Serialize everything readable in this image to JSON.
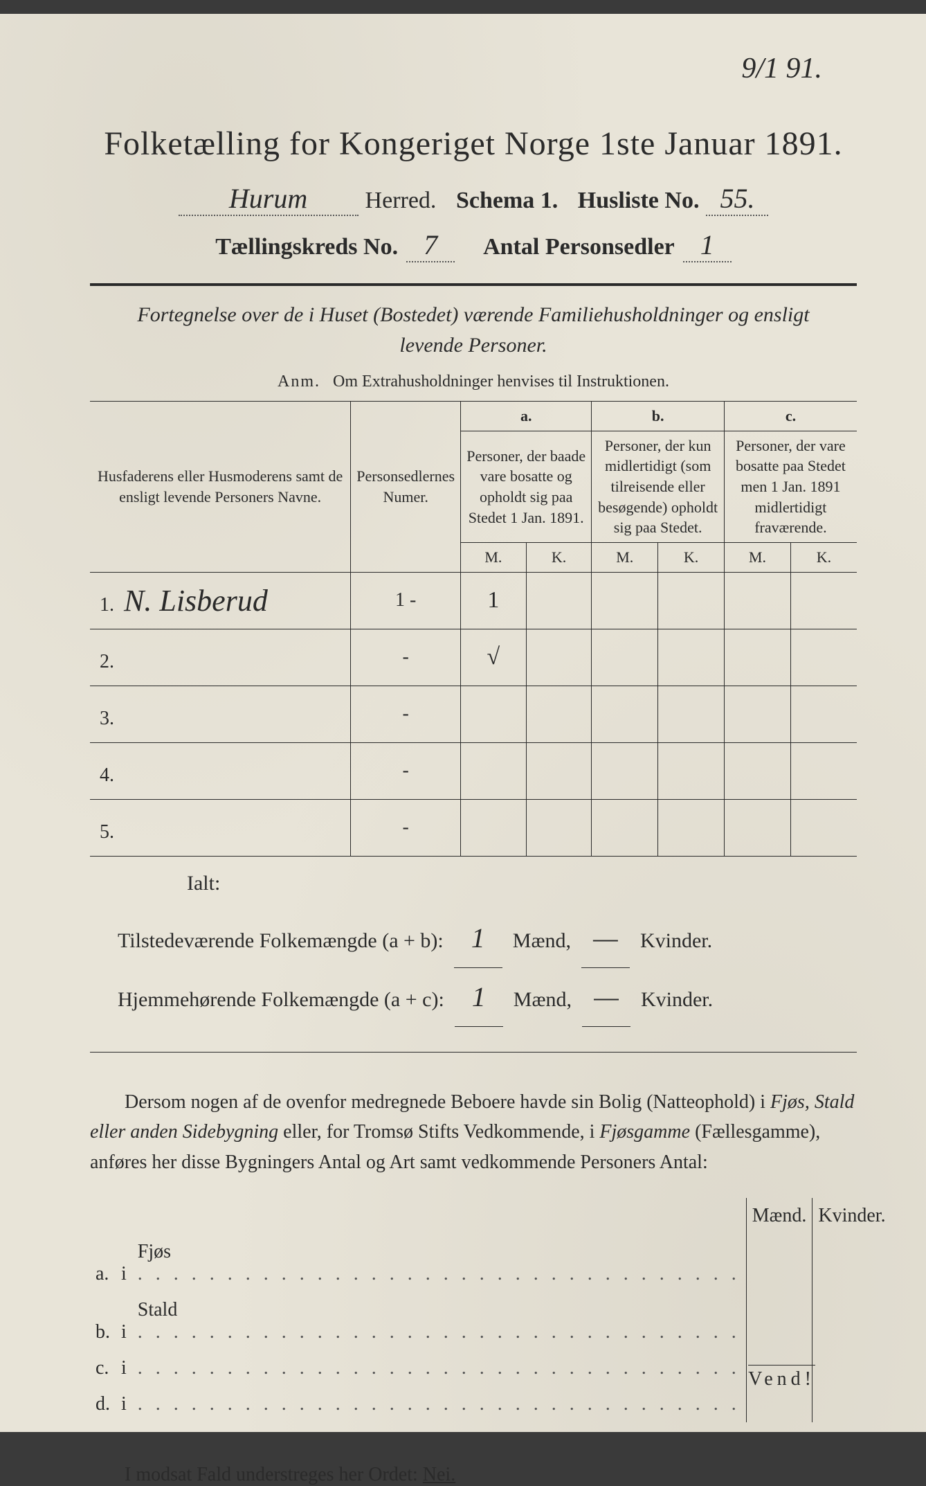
{
  "corner_note": "9/1 91.",
  "title": "Folketælling for Kongeriget Norge 1ste Januar 1891.",
  "header": {
    "herred_value": "Hurum",
    "herred_label": "Herred.",
    "schema_label": "Schema 1.",
    "husliste_label": "Husliste No.",
    "husliste_value": "55.",
    "kreds_label": "Tællingskreds No.",
    "kreds_value": "7",
    "antal_label": "Antal Personsedler",
    "antal_value": "1"
  },
  "subtitle": "Fortegnelse over de i Huset (Bostedet) værende Familiehusholdninger og ensligt levende Personer.",
  "anm_label": "Anm.",
  "anm_text": "Om Extrahusholdninger henvises til Instruktionen.",
  "columns": {
    "name_header": "Husfaderens eller Husmoderens samt de ensligt levende Personers Navne.",
    "num_header": "Personsedlernes Numer.",
    "a_letter": "a.",
    "a_header": "Personer, der baade vare bosatte og opholdt sig paa Stedet 1 Jan. 1891.",
    "b_letter": "b.",
    "b_header": "Personer, der kun midlertidigt (som tilreisende eller besøgende) opholdt sig paa Stedet.",
    "c_letter": "c.",
    "c_header": "Personer, der vare bosatte paa Stedet men 1 Jan. 1891 midlertidigt fraværende.",
    "M": "M.",
    "K": "K."
  },
  "rows": [
    {
      "n": "1.",
      "name": "N. Lisberud",
      "num": "1 -",
      "aM": "1",
      "aK": "",
      "bM": "",
      "bK": "",
      "cM": "",
      "cK": ""
    },
    {
      "n": "2.",
      "name": "",
      "num": "-",
      "aM": "√",
      "aK": "",
      "bM": "",
      "bK": "",
      "cM": "",
      "cK": ""
    },
    {
      "n": "3.",
      "name": "",
      "num": "-",
      "aM": "",
      "aK": "",
      "bM": "",
      "bK": "",
      "cM": "",
      "cK": ""
    },
    {
      "n": "4.",
      "name": "",
      "num": "-",
      "aM": "",
      "aK": "",
      "bM": "",
      "bK": "",
      "cM": "",
      "cK": ""
    },
    {
      "n": "5.",
      "name": "",
      "num": "-",
      "aM": "",
      "aK": "",
      "bM": "",
      "bK": "",
      "cM": "",
      "cK": ""
    }
  ],
  "ialt": "Ialt:",
  "totals": {
    "line1_label": "Tilstedeværende Folkemængde (a + b):",
    "line1_m": "1",
    "line1_k": "—",
    "line2_label": "Hjemmehørende Folkemængde (a + c):",
    "line2_m": "1",
    "line2_k": "—",
    "maend": "Mænd,",
    "kvinder": "Kvinder."
  },
  "body_para": "Dersom nogen af de ovenfor medregnede Beboere havde sin Bolig (Natteophold) i Fjøs, Stald eller anden Sidebygning eller, for Tromsø Stifts Vedkommende, i Fjøsgamme (Fællesgamme), anføres her disse Bygningers Antal og Art samt vedkommende Personers Antal:",
  "buildings": {
    "maend": "Mænd.",
    "kvinder": "Kvinder.",
    "rows": [
      {
        "letter": "a.",
        "i": "i",
        "type": "Fjøs"
      },
      {
        "letter": "b.",
        "i": "i",
        "type": "Stald"
      },
      {
        "letter": "c.",
        "i": "i",
        "type": ""
      },
      {
        "letter": "d.",
        "i": "i",
        "type": ""
      }
    ]
  },
  "footer": "I modsat Fald understreges her Ordet:",
  "footer_word": "Nei.",
  "vend": "Vend!",
  "style": {
    "page_bg": "#e8e4d8",
    "text_color": "#2a2a2a",
    "border_color": "#2a2a2a",
    "title_fontsize": 48,
    "header_fontsize": 34,
    "body_fontsize": 28
  }
}
